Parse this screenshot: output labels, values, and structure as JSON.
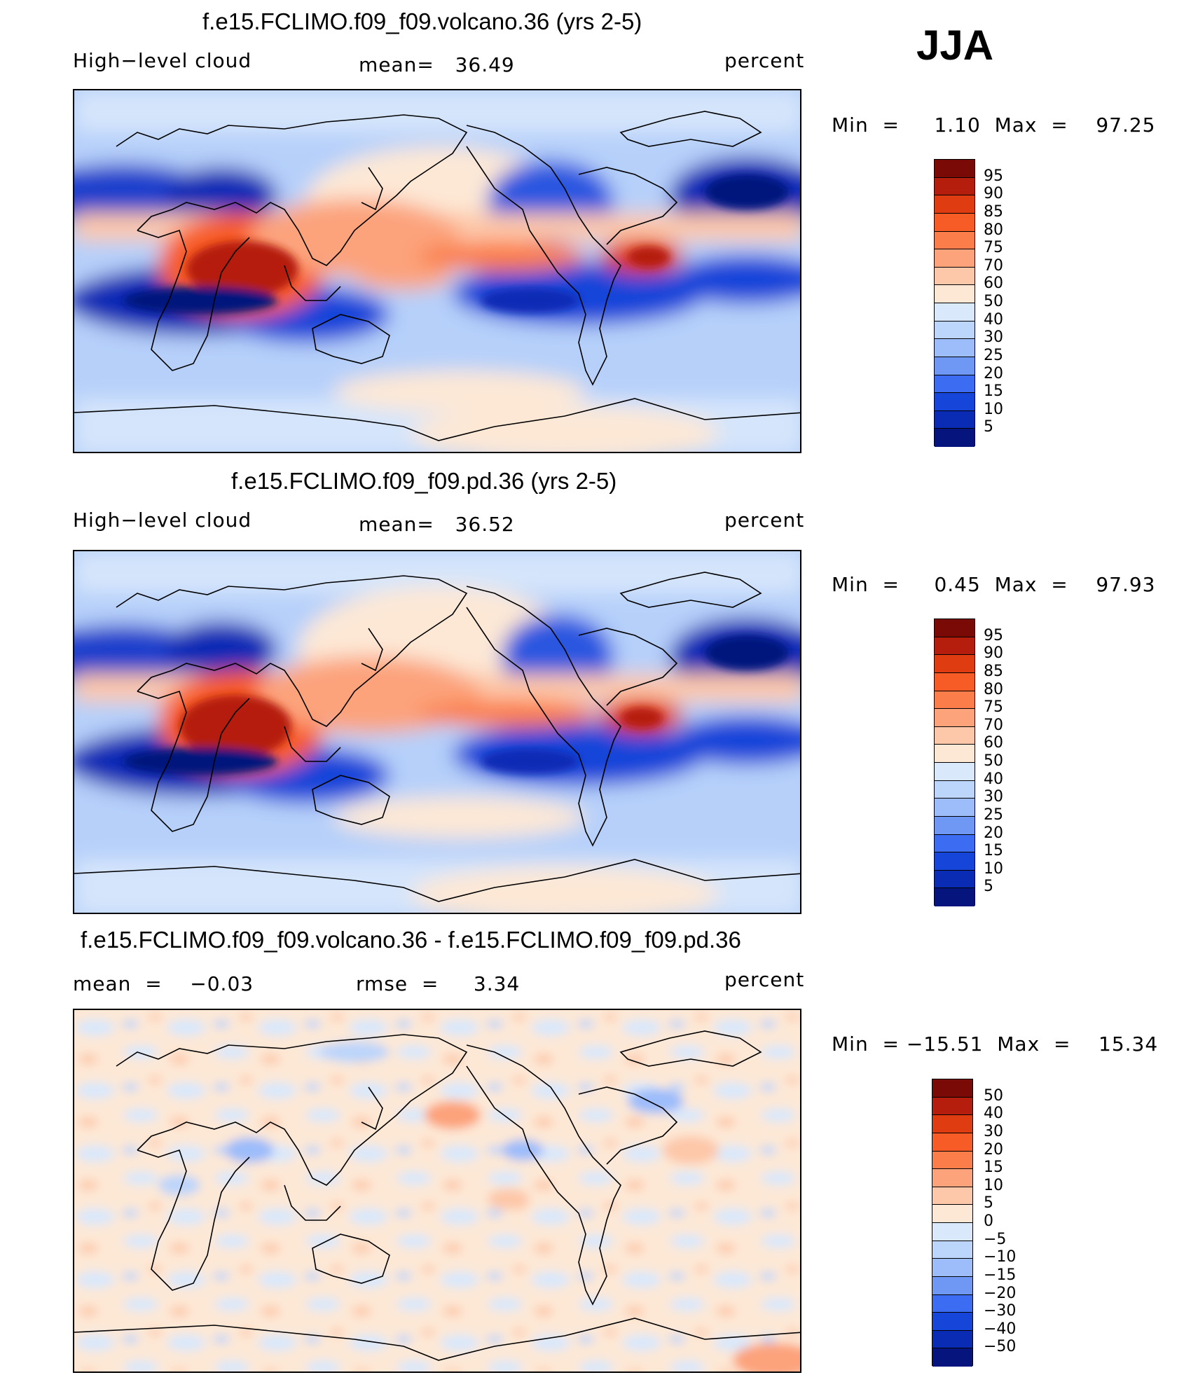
{
  "season": "JJA",
  "panels": [
    {
      "title": "f.e15.FCLIMO.f09_f09.volcano.36 (yrs 2-5)",
      "left_label": "High−level cloud",
      "center_label": "mean=   36.49",
      "right_label": "percent",
      "minmax": "Min  =     1.10  Max  =    97.25"
    },
    {
      "title": "f.e15.FCLIMO.f09_f09.pd.36 (yrs 2-5)",
      "left_label": "High−level cloud",
      "center_label": "mean=   36.52",
      "right_label": "percent",
      "minmax": "Min  =     0.45  Max  =    97.93"
    },
    {
      "title": "f.e15.FCLIMO.f09_f09.volcano.36 - f.e15.FCLIMO.f09_f09.pd.36",
      "left_label": "mean  =    −0.03",
      "center_label": "rmse  =     3.34",
      "right_label": "percent",
      "minmax": "Min  = −15.51  Max  =    15.34"
    }
  ],
  "colorbars": {
    "abs_labels": [
      "95",
      "90",
      "85",
      "80",
      "75",
      "70",
      "60",
      "50",
      "40",
      "30",
      "25",
      "20",
      "15",
      "10",
      "5"
    ],
    "abs_colors": [
      "#7a0a05",
      "#b51e0c",
      "#e03c12",
      "#f75c26",
      "#fb7e4a",
      "#fca37c",
      "#fdc7a9",
      "#fde8d6",
      "#d9e8fb",
      "#bcd5fb",
      "#9cbcfa",
      "#6f98f5",
      "#3b6cf2",
      "#1645d9",
      "#0a2cb5",
      "#05157d"
    ],
    "diff_labels": [
      "50",
      "40",
      "30",
      "20",
      "15",
      "10",
      "5",
      "0",
      "−5",
      "−10",
      "−15",
      "−20",
      "−30",
      "−40",
      "−50"
    ],
    "diff_colors": [
      "#7a0a05",
      "#b51e0c",
      "#e03c12",
      "#f75c26",
      "#fb7e4a",
      "#fca37c",
      "#fdc7a9",
      "#fde8d6",
      "#d9e8fb",
      "#bcd5fb",
      "#9cbcfa",
      "#6f98f5",
      "#3b6cf2",
      "#1645d9",
      "#0a2cb5",
      "#05157d"
    ]
  }
}
